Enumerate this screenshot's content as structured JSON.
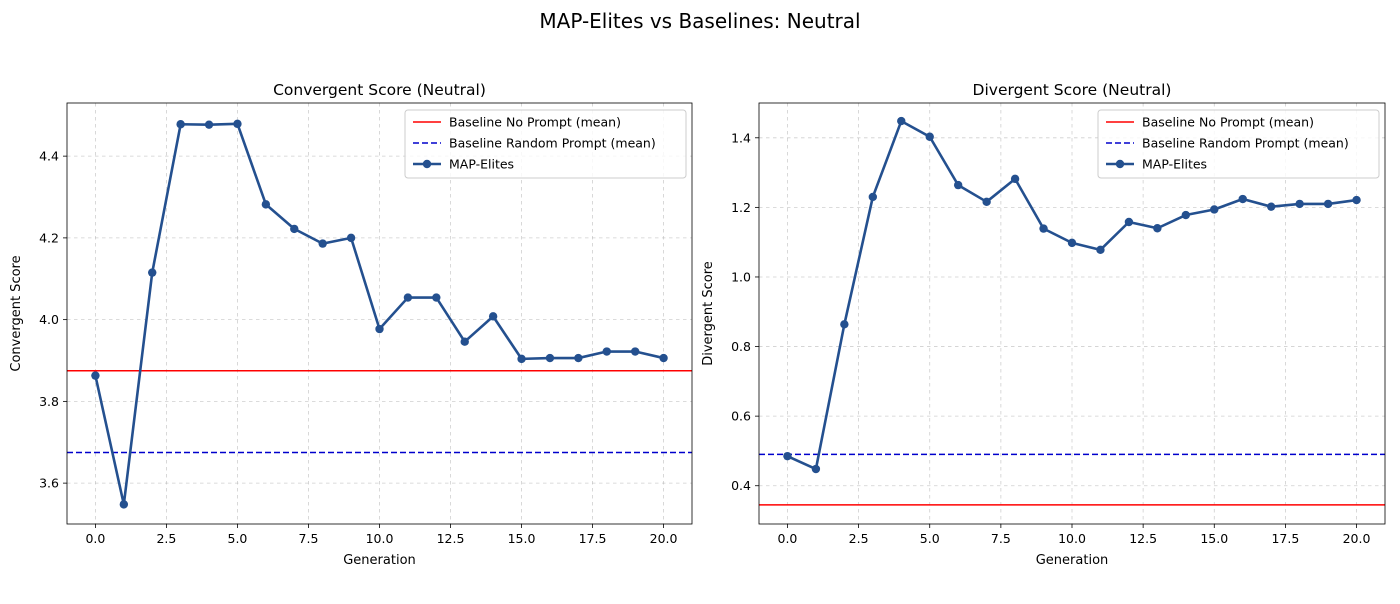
{
  "figure_title": "MAP-Elites vs Baselines: Neutral",
  "colors": {
    "baseline_no_prompt": "#ff0000",
    "baseline_random_prompt": "#0000cc",
    "map_elites": "#24508f"
  },
  "chart_data": [
    {
      "type": "line",
      "title": "Convergent Score (Neutral)",
      "xlabel": "Generation",
      "ylabel": "Convergent Score",
      "xlim": [
        -1,
        21
      ],
      "ylim": [
        3.5,
        4.53
      ],
      "xticks": [
        0,
        2.5,
        5,
        7.5,
        10,
        12.5,
        15,
        17.5,
        20
      ],
      "xtick_labels": [
        "0.0",
        "2.5",
        "5.0",
        "7.5",
        "10.0",
        "12.5",
        "15.0",
        "17.5",
        "20.0"
      ],
      "yticks": [
        3.6,
        3.8,
        4.0,
        4.2,
        4.4
      ],
      "ytick_labels": [
        "3.6",
        "3.8",
        "4.0",
        "4.2",
        "4.4"
      ],
      "grid": true,
      "legend_position": "top-right",
      "hlines": [
        {
          "name": "Baseline No Prompt (mean)",
          "y": 3.875,
          "style": "solid",
          "color_key": "baseline_no_prompt"
        },
        {
          "name": "Baseline Random Prompt (mean)",
          "y": 3.675,
          "style": "dashed",
          "color_key": "baseline_random_prompt"
        }
      ],
      "series": [
        {
          "name": "MAP-Elites",
          "color_key": "map_elites",
          "x": [
            0,
            1,
            2,
            3,
            4,
            5,
            6,
            7,
            8,
            9,
            10,
            11,
            12,
            13,
            14,
            15,
            16,
            17,
            18,
            19,
            20
          ],
          "values": [
            3.863,
            3.548,
            4.115,
            4.478,
            4.477,
            4.479,
            4.282,
            4.222,
            4.186,
            4.2,
            3.977,
            4.054,
            4.054,
            3.946,
            4.008,
            3.904,
            3.906,
            3.906,
            3.922,
            3.922,
            3.906
          ]
        }
      ]
    },
    {
      "type": "line",
      "title": "Divergent Score (Neutral)",
      "xlabel": "Generation",
      "ylabel": "Divergent Score",
      "xlim": [
        -1,
        21
      ],
      "ylim": [
        0.29,
        1.5
      ],
      "xticks": [
        0,
        2.5,
        5,
        7.5,
        10,
        12.5,
        15,
        17.5,
        20
      ],
      "xtick_labels": [
        "0.0",
        "2.5",
        "5.0",
        "7.5",
        "10.0",
        "12.5",
        "15.0",
        "17.5",
        "20.0"
      ],
      "yticks": [
        0.4,
        0.6,
        0.8,
        1.0,
        1.2,
        1.4
      ],
      "ytick_labels": [
        "0.4",
        "0.6",
        "0.8",
        "1.0",
        "1.2",
        "1.4"
      ],
      "grid": true,
      "legend_position": "top-right",
      "hlines": [
        {
          "name": "Baseline No Prompt (mean)",
          "y": 0.345,
          "style": "solid",
          "color_key": "baseline_no_prompt"
        },
        {
          "name": "Baseline Random Prompt (mean)",
          "y": 0.49,
          "style": "dashed",
          "color_key": "baseline_random_prompt"
        }
      ],
      "series": [
        {
          "name": "MAP-Elites",
          "color_key": "map_elites",
          "x": [
            0,
            1,
            2,
            3,
            4,
            5,
            6,
            7,
            8,
            9,
            10,
            11,
            12,
            13,
            14,
            15,
            16,
            17,
            18,
            19,
            20
          ],
          "values": [
            0.485,
            0.448,
            0.864,
            1.23,
            1.448,
            1.403,
            1.264,
            1.216,
            1.282,
            1.139,
            1.098,
            1.078,
            1.158,
            1.14,
            1.178,
            1.194,
            1.224,
            1.202,
            1.21,
            1.21,
            1.221
          ]
        }
      ]
    }
  ]
}
